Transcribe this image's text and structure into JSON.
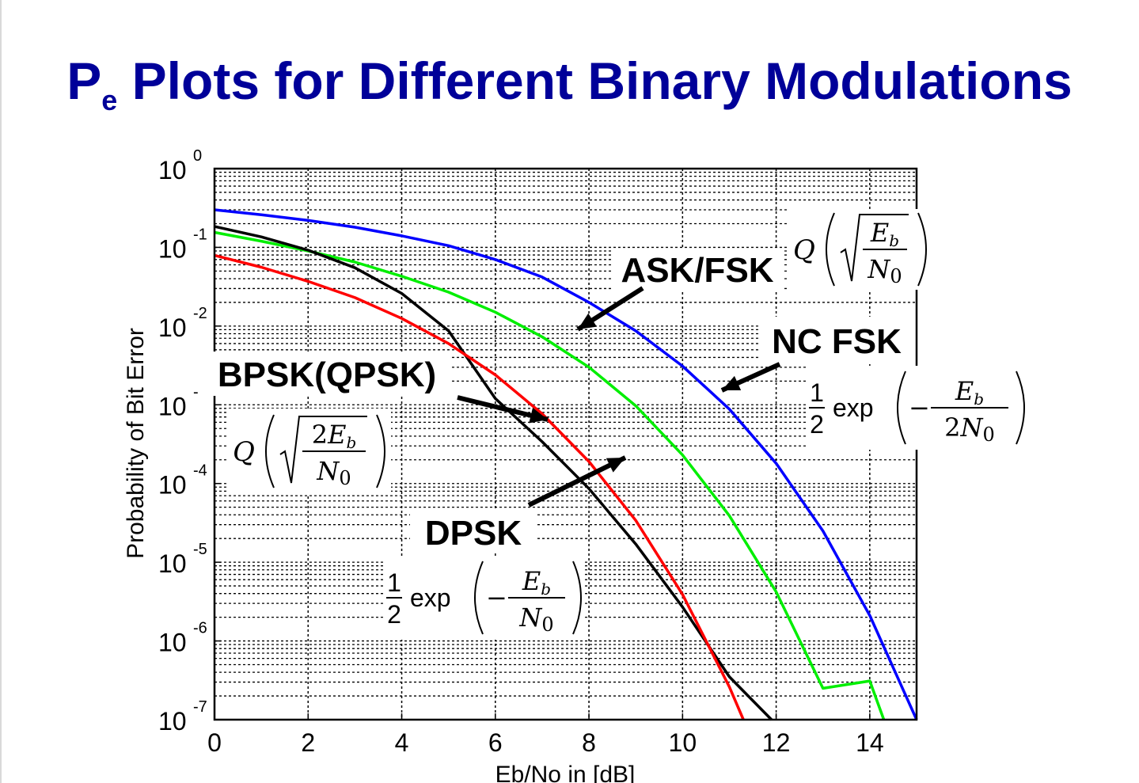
{
  "title": {
    "main": "P",
    "subscript": "e",
    "rest": " Plots for Different Binary Modulations"
  },
  "chart_data": {
    "type": "line",
    "xlabel": "Eb/No in [dB]",
    "ylabel": "Probability of Bit Error",
    "xlim": [
      0,
      15
    ],
    "ylim": [
      1e-07,
      1
    ],
    "yscale": "log",
    "grid": true,
    "xticks": [
      0,
      2,
      4,
      6,
      8,
      10,
      12,
      14
    ],
    "yticks": [
      {
        "base": "10",
        "exp": "0",
        "value": 1
      },
      {
        "base": "10",
        "exp": "-1",
        "value": 0.1
      },
      {
        "base": "10",
        "exp": "-2",
        "value": 0.01
      },
      {
        "base": "10",
        "exp": "-",
        "value": 0.001
      },
      {
        "base": "10",
        "exp": "-4",
        "value": 0.0001
      },
      {
        "base": "10",
        "exp": "-5",
        "value": 1e-05
      },
      {
        "base": "10",
        "exp": "-6",
        "value": 1e-06
      },
      {
        "base": "10",
        "exp": "-7",
        "value": 1e-07
      }
    ],
    "series": [
      {
        "color": "#0000ff",
        "x": [
          0,
          1,
          2,
          3,
          4,
          5,
          6,
          7,
          8,
          9,
          10,
          11,
          12,
          13,
          14,
          15
        ],
        "y": [
          0.3,
          0.26,
          0.22,
          0.18,
          0.14,
          0.105,
          0.07,
          0.042,
          0.02,
          0.0087,
          0.0031,
          0.00088,
          0.00018,
          2.5e-05,
          2.1e-06,
          1e-07
        ]
      },
      {
        "color": "#00ee00",
        "x": [
          0,
          1,
          2,
          3,
          4,
          5,
          6,
          7,
          8,
          9,
          10,
          11,
          12,
          13,
          14,
          14.3
        ],
        "y": [
          0.155,
          0.12,
          0.09,
          0.065,
          0.043,
          0.027,
          0.015,
          0.0073,
          0.003,
          0.00097,
          0.00023,
          3.9e-05,
          4.2e-06,
          2.5e-07,
          3.1e-07,
          1e-07
        ]
      },
      {
        "color": "#000000",
        "x": [
          0,
          1,
          2,
          3,
          4,
          5,
          6,
          7,
          8,
          9,
          10,
          11,
          11.9
        ],
        "y": [
          0.184,
          0.136,
          0.092,
          0.055,
          0.026,
          0.0087,
          0.0012,
          0.00034,
          8.6e-05,
          1.7e-05,
          2.7e-06,
          3.5e-07,
          1e-07
        ]
      },
      {
        "color": "#ff0000",
        "x": [
          0,
          1,
          2,
          3,
          4,
          5,
          6,
          7,
          8,
          9,
          10,
          11,
          11.3
        ],
        "y": [
          0.079,
          0.056,
          0.037,
          0.023,
          0.0125,
          0.006,
          0.0024,
          0.00077,
          0.00019,
          3.4e-05,
          3.9e-06,
          2.6e-07,
          1e-07
        ]
      }
    ],
    "annotations": [
      {
        "label": "ASK/FSK"
      },
      {
        "label": "NC FSK"
      },
      {
        "label": "BPSK(QPSK)"
      },
      {
        "label": "DPSK"
      }
    ],
    "formulas": [
      {
        "fn": "Q",
        "num": "E",
        "num_sub": "b",
        "den": "N",
        "den_sub": "0"
      },
      {
        "half": "1",
        "half_den": "2",
        "fn": "exp",
        "sign": "−",
        "num": "E",
        "num_sub": "b",
        "den_coef": "2",
        "den": "N",
        "den_sub": "0"
      },
      {
        "fn": "Q",
        "num_coef": "2",
        "num": "E",
        "num_sub": "b",
        "den": "N",
        "den_sub": "0"
      },
      {
        "half": "1",
        "half_den": "2",
        "fn": "exp",
        "sign": "−",
        "num": "E",
        "num_sub": "b",
        "den": "N",
        "den_sub": "0"
      }
    ]
  }
}
